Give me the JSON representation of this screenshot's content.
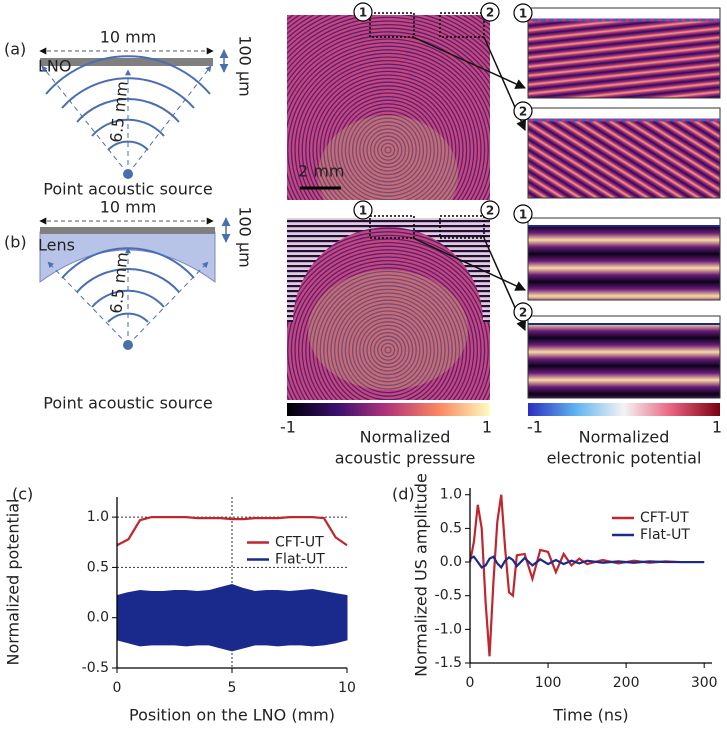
{
  "figure": {
    "a": {
      "label": "(a)",
      "width": "10 mm",
      "layer": "LNO",
      "thickness": "100 μm",
      "distance": "6.5 mm",
      "source": "Point acoustic source"
    },
    "b": {
      "label": "(b)",
      "width": "10 mm",
      "layer": "Lens",
      "thickness": "100 μm",
      "distance": "6.5 mm",
      "source": "Point acoustic source"
    },
    "markers": [
      "1",
      "2"
    ],
    "scale_bar": "2 mm",
    "colorbars": [
      {
        "min": -1,
        "max": 1,
        "label": [
          "Normalized",
          "acoustic pressure"
        ]
      },
      {
        "min": -1,
        "max": 1,
        "label": [
          "Normalized",
          "electronic potential"
        ]
      }
    ]
  },
  "chart_data": [
    {
      "type": "line",
      "label": "(c)",
      "xlabel": "Position on the LNO (mm)",
      "ylabel": "Normalized potential",
      "x": [
        0,
        0.5,
        1,
        1.5,
        2,
        2.5,
        3,
        3.5,
        4,
        4.5,
        5,
        5.5,
        6,
        6.5,
        7,
        7.5,
        8,
        8.5,
        9,
        9.5,
        10
      ],
      "xlim": [
        0,
        10
      ],
      "xticks": [
        0,
        5,
        10
      ],
      "ylim": [
        -0.5,
        1.2
      ],
      "yticks": [
        -0.5,
        {
          "value": 0,
          "label": "0.0"
        },
        0.5,
        {
          "value": 1,
          "label": "1.0"
        }
      ],
      "ref_lines": {
        "x": [
          5
        ],
        "y": [
          0.5,
          1
        ]
      },
      "legend": "center right",
      "series": [
        {
          "name": "CFT-UT",
          "color": "#c0262d",
          "values": [
            0.72,
            0.78,
            0.97,
            1.0,
            1.0,
            1.0,
            1.0,
            0.99,
            0.99,
            0.99,
            0.98,
            0.98,
            0.99,
            0.99,
            0.99,
            1.0,
            1.0,
            1.0,
            0.99,
            0.8,
            0.72
          ]
        },
        {
          "name": "Flat-UT",
          "color": "#1a2a8c",
          "type": "band",
          "upper": [
            0.22,
            0.25,
            0.27,
            0.26,
            0.26,
            0.27,
            0.27,
            0.26,
            0.27,
            0.3,
            0.33,
            0.29,
            0.26,
            0.27,
            0.27,
            0.26,
            0.27,
            0.28,
            0.26,
            0.24,
            0.22
          ],
          "lower": [
            -0.22,
            -0.25,
            -0.28,
            -0.27,
            -0.27,
            -0.27,
            -0.28,
            -0.27,
            -0.27,
            -0.3,
            -0.33,
            -0.3,
            -0.27,
            -0.27,
            -0.28,
            -0.27,
            -0.27,
            -0.28,
            -0.27,
            -0.25,
            -0.22
          ]
        }
      ]
    },
    {
      "type": "line",
      "label": "(d)",
      "xlabel": "Time (ns)",
      "ylabel": "Normalized US amplitude",
      "x": [
        0,
        5,
        10,
        15,
        20,
        25,
        30,
        35,
        40,
        45,
        50,
        55,
        60,
        70,
        80,
        90,
        100,
        110,
        120,
        130,
        140,
        150,
        170,
        190,
        210,
        230,
        250,
        270,
        290,
        300
      ],
      "xlim": [
        0,
        310
      ],
      "xticks": [
        0,
        100,
        200,
        300
      ],
      "ylim": [
        -1.5,
        1.1
      ],
      "yticks": [
        -1.5,
        {
          "value": -1,
          "label": "-1.0"
        },
        -0.5,
        {
          "value": 0,
          "label": "0.0"
        },
        0.5,
        {
          "value": 1,
          "label": "1.0"
        }
      ],
      "legend": "upper right",
      "series": [
        {
          "name": "CFT-UT",
          "color": "#c0262d",
          "values": [
            0,
            0.3,
            0.85,
            0.5,
            -0.6,
            -1.4,
            -0.3,
            0.6,
            1.0,
            0.2,
            -0.45,
            -0.5,
            0.1,
            0.12,
            -0.25,
            0.18,
            0.15,
            -0.15,
            0.12,
            -0.05,
            0.05,
            -0.03,
            0.03,
            -0.02,
            0.02,
            -0.01,
            0.01,
            0,
            0,
            0
          ]
        },
        {
          "name": "Flat-UT",
          "color": "#1a2a8c",
          "values": [
            0.05,
            0.08,
            0,
            -0.08,
            -0.05,
            0.05,
            0.08,
            -0.02,
            -0.08,
            0.02,
            0.07,
            0.03,
            -0.06,
            0.06,
            -0.05,
            0.04,
            -0.03,
            0.03,
            -0.03,
            0.02,
            -0.02,
            0.02,
            -0.01,
            0.01,
            -0.01,
            0.01,
            0,
            0,
            0,
            0
          ]
        }
      ]
    }
  ]
}
